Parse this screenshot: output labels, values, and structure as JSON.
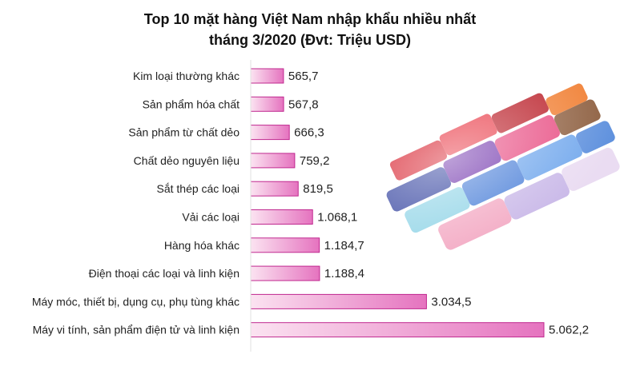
{
  "chart_data": {
    "type": "bar",
    "orientation": "horizontal",
    "title": "Top 10 mặt hàng Việt Nam nhập khẩu nhiều nhất",
    "subtitle": "tháng 3/2020 (Đvt: Triệu USD)",
    "categories": [
      "Kim loại thường khác",
      "Sản phẩm hóa chất",
      "Sản phẩm từ chất dẻo",
      "Chất dẻo nguyên liệu",
      "Sắt thép các loại",
      "Vải các loại",
      "Hàng hóa khác",
      "Điện thoại các loại và linh kiện",
      "Máy móc, thiết bị, dụng cụ, phụ tùng khác",
      "Máy vi tính, sản phẩm điện tử và linh kiện"
    ],
    "values": [
      565.7,
      567.8,
      666.3,
      759.2,
      819.5,
      1068.1,
      1184.7,
      1188.4,
      3034.5,
      5062.2
    ],
    "data_labels": [
      "565,7",
      "567,8",
      "666,3",
      "759,2",
      "819,5",
      "1.068,1",
      "1.184,7",
      "1.188,4",
      "3.034,5",
      "5.062,2"
    ],
    "xlabel": "",
    "ylabel": "",
    "xlim": [
      0,
      5062.2
    ],
    "grid": false,
    "legend": "none",
    "colors": {
      "bar_start": "#fbe3f1",
      "bar_end": "#e573bf",
      "bar_border": "#c0288f",
      "axis": "#e0e0e0",
      "label_text": "#222222"
    },
    "decoration_icon": "thread-spools-image"
  }
}
